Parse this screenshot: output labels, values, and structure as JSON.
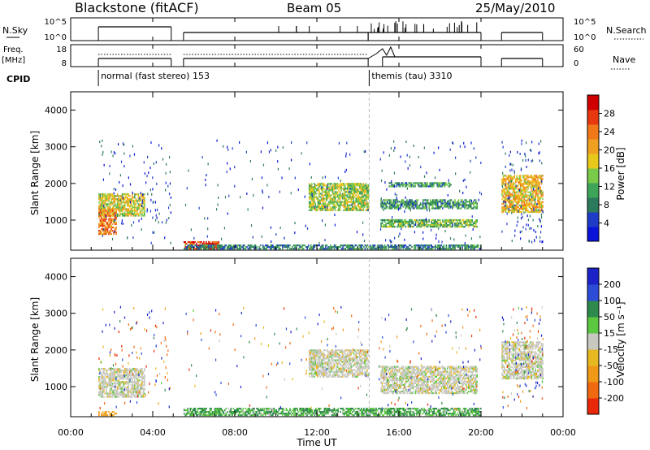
{
  "header": {
    "station": "Blackstone (fitACF)",
    "beam": "Beam 05",
    "date": "25/May/2010"
  },
  "panels": {
    "nsky": {
      "label": "N.Sky",
      "right_label": "N.Search",
      "ticks_left": [
        "10^5",
        "10^0"
      ],
      "ticks_right": [
        "10^5",
        "10^0"
      ]
    },
    "freq": {
      "label_line1": "Freq.",
      "label_line2": "[MHz]",
      "right_label": "Nave",
      "ticks_left": [
        "18",
        "8"
      ],
      "ticks_right": [
        "60",
        "0"
      ]
    },
    "cpid": {
      "label": "CPID",
      "modes": [
        {
          "start_hour": 1.35,
          "text": "normal (fast stereo) 153"
        },
        {
          "start_hour": 14.55,
          "text": "themis (tau) 3310"
        }
      ]
    }
  },
  "colors": {
    "power": [
      "#0a14d8",
      "#1e3cc8",
      "#2c7a5c",
      "#3ea458",
      "#79c94a",
      "#e8c81a",
      "#f0a020",
      "#f07818",
      "#e83810",
      "#d00000"
    ],
    "velocity_pos": [
      "#1a22c8",
      "#2c4cd8",
      "#2e8a4c",
      "#5cc840"
    ],
    "velocity_ground": "#c8c8c0",
    "velocity_neg": [
      "#e8b820",
      "#f09818",
      "#f06810",
      "#e82808"
    ]
  },
  "chart_data": [
    {
      "type": "heatmap",
      "title": "",
      "xlabel": "Time UT",
      "ylabel": "Slant Range [km]",
      "x_tick_labels": [
        "00:00",
        "04:00",
        "08:00",
        "12:00",
        "16:00",
        "20:00",
        "00:00"
      ],
      "x_ticks_hours": [
        0,
        4,
        8,
        12,
        16,
        20,
        24
      ],
      "xlim_hours": [
        0,
        24
      ],
      "y_ticks": [
        1000,
        2000,
        3000,
        4000
      ],
      "ylim": [
        180,
        4500
      ],
      "colorbar": {
        "label": "Power [dB]",
        "ticks": [
          "4",
          "8",
          "12",
          "16",
          "20",
          "24",
          "28"
        ],
        "range": [
          0,
          30
        ]
      },
      "cpid_change_hour": 14.55,
      "echo_regions": [
        {
          "t0": 1.35,
          "t1": 3.6,
          "r0": 1100,
          "r1": 1700,
          "level": 16
        },
        {
          "t0": 1.35,
          "t1": 2.2,
          "r0": 600,
          "r1": 1300,
          "level": 22
        },
        {
          "t0": 11.6,
          "t1": 14.5,
          "r0": 1250,
          "r1": 2000,
          "level": 14
        },
        {
          "t0": 15.1,
          "t1": 19.8,
          "r0": 800,
          "r1": 1000,
          "level": 12
        },
        {
          "t0": 15.1,
          "t1": 19.8,
          "r0": 1300,
          "r1": 1550,
          "level": 10
        },
        {
          "t0": 15.5,
          "t1": 18.5,
          "r0": 1900,
          "r1": 2000,
          "level": 10
        },
        {
          "t0": 21.0,
          "t1": 23.0,
          "r0": 1200,
          "r1": 2200,
          "level": 18
        },
        {
          "t0": 5.5,
          "t1": 7.2,
          "r0": 200,
          "r1": 420,
          "level": 26
        },
        {
          "t0": 5.5,
          "t1": 20.0,
          "r0": 200,
          "r1": 300,
          "level": 8
        }
      ]
    },
    {
      "type": "heatmap",
      "title": "",
      "xlabel": "Time UT",
      "ylabel": "Slant Range [km]",
      "x_tick_labels": [
        "00:00",
        "04:00",
        "08:00",
        "12:00",
        "16:00",
        "20:00",
        "00:00"
      ],
      "x_ticks_hours": [
        0,
        4,
        8,
        12,
        16,
        20,
        24
      ],
      "xlim_hours": [
        0,
        24
      ],
      "y_ticks": [
        1000,
        2000,
        3000,
        4000
      ],
      "ylim": [
        180,
        4500
      ],
      "colorbar": {
        "label": "Velocity [m s⁻¹]",
        "ticks": [
          "200",
          "100",
          "50",
          "15",
          "-15",
          "-50",
          "-100",
          "-200"
        ],
        "range": [
          -250,
          250
        ]
      },
      "cpid_change_hour": 14.55,
      "echo_regions": [
        {
          "t0": 1.35,
          "t1": 3.6,
          "r0": 700,
          "r1": 1500,
          "velocity": 0
        },
        {
          "t0": 1.35,
          "t1": 2.2,
          "r0": 200,
          "r1": 300,
          "velocity": -60
        },
        {
          "t0": 11.6,
          "t1": 14.5,
          "r0": 1250,
          "r1": 2000,
          "velocity": 0
        },
        {
          "t0": 15.1,
          "t1": 19.8,
          "r0": 800,
          "r1": 1550,
          "velocity": 0
        },
        {
          "t0": 21.0,
          "t1": 23.0,
          "r0": 1200,
          "r1": 2200,
          "velocity": 0
        },
        {
          "t0": 5.5,
          "t1": 20.0,
          "r0": 200,
          "r1": 420,
          "velocity": 30
        }
      ]
    }
  ]
}
